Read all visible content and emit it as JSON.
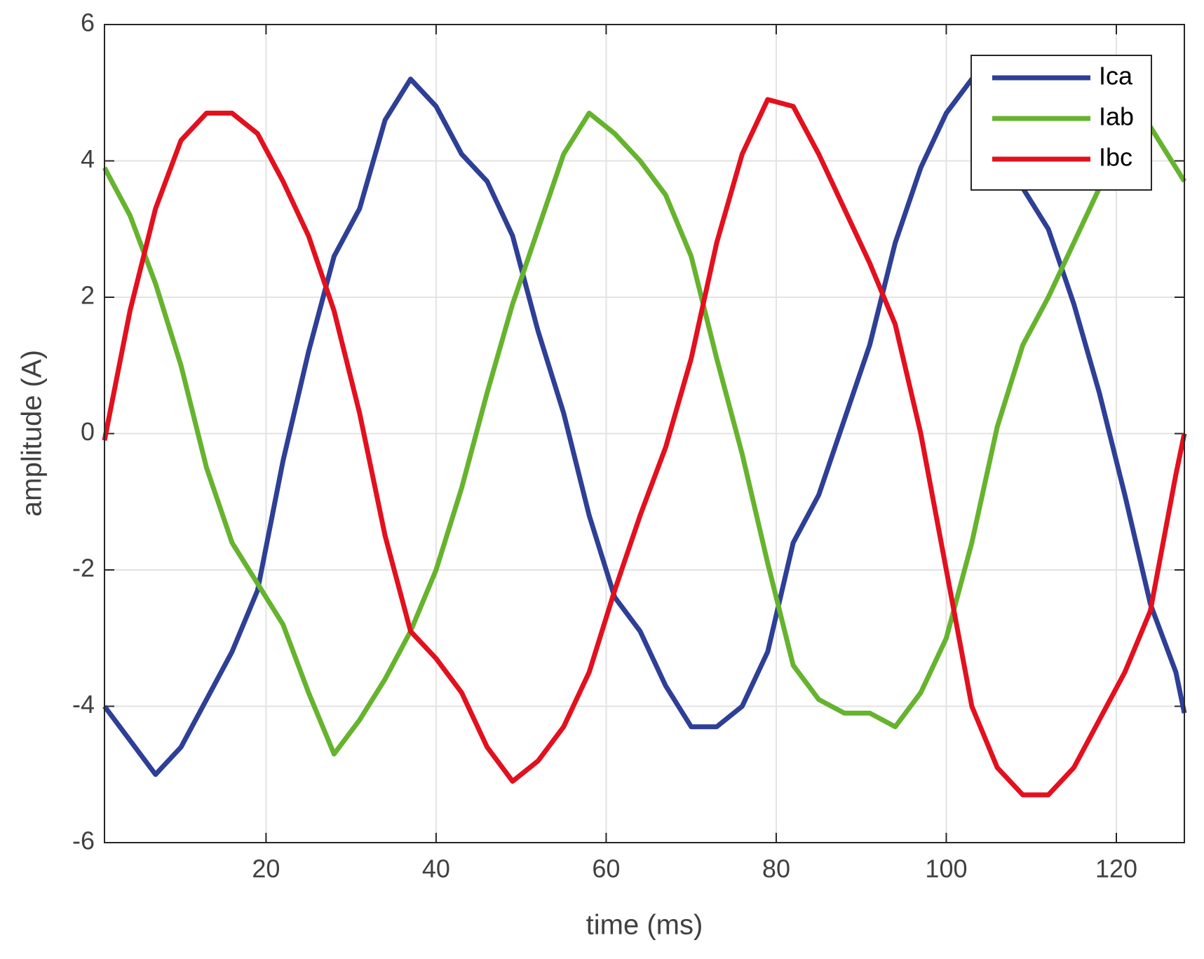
{
  "chart_data": {
    "type": "line",
    "xlabel": "time (ms)",
    "ylabel": "amplitude (A)",
    "x": [
      1,
      4,
      7,
      10,
      13,
      16,
      19,
      22,
      25,
      28,
      31,
      34,
      37,
      40,
      43,
      46,
      49,
      52,
      55,
      58,
      61,
      64,
      67,
      70,
      73,
      76,
      79,
      82,
      85,
      88,
      91,
      94,
      97,
      100,
      103,
      106,
      109,
      112,
      115,
      118,
      121,
      124,
      127,
      128
    ],
    "series": [
      {
        "name": "Ica",
        "color": "#2e3f96",
        "values": [
          -4.0,
          -4.5,
          -5.0,
          -4.6,
          -3.9,
          -3.2,
          -2.3,
          -0.4,
          1.2,
          2.6,
          3.3,
          4.6,
          5.2,
          4.8,
          4.1,
          3.7,
          2.9,
          1.5,
          0.3,
          -1.2,
          -2.4,
          -2.9,
          -3.7,
          -4.3,
          -4.3,
          -4.0,
          -3.2,
          -1.6,
          -0.9,
          0.2,
          1.3,
          2.8,
          3.9,
          4.7,
          5.2,
          4.9,
          3.6,
          3.0,
          1.9,
          0.6,
          -0.9,
          -2.5,
          -3.5,
          -4.1
        ]
      },
      {
        "name": "Iab",
        "color": "#66b32e",
        "values": [
          3.9,
          3.2,
          2.2,
          1.0,
          -0.5,
          -1.6,
          -2.2,
          -2.8,
          -3.8,
          -4.7,
          -4.2,
          -3.6,
          -2.9,
          -2.0,
          -0.8,
          0.6,
          1.9,
          3.0,
          4.1,
          4.7,
          4.4,
          4.0,
          3.5,
          2.6,
          1.1,
          -0.3,
          -1.9,
          -3.4,
          -3.9,
          -4.1,
          -4.1,
          -4.3,
          -3.8,
          -3.0,
          -1.6,
          0.1,
          1.3,
          2.0,
          2.8,
          3.6,
          4.4,
          4.5,
          3.9,
          3.7
        ]
      },
      {
        "name": "Ibc",
        "color": "#e3101e",
        "values": [
          -0.1,
          1.8,
          3.3,
          4.3,
          4.7,
          4.7,
          4.4,
          3.7,
          2.9,
          1.8,
          0.3,
          -1.5,
          -2.9,
          -3.3,
          -3.8,
          -4.6,
          -5.1,
          -4.8,
          -4.3,
          -3.5,
          -2.3,
          -1.2,
          -0.2,
          1.1,
          2.8,
          4.1,
          4.9,
          4.8,
          4.1,
          3.3,
          2.5,
          1.6,
          0.0,
          -2.0,
          -4.0,
          -4.9,
          -5.3,
          -5.3,
          -4.9,
          -4.2,
          -3.5,
          -2.6,
          -0.6,
          0.0
        ]
      }
    ],
    "xlim": [
      1,
      128
    ],
    "ylim": [
      -6,
      6
    ],
    "xticks": [
      20,
      40,
      60,
      80,
      100,
      120
    ],
    "yticks": [
      -6,
      -4,
      -2,
      0,
      2,
      4,
      6
    ],
    "grid": true,
    "legend": "top-right"
  }
}
